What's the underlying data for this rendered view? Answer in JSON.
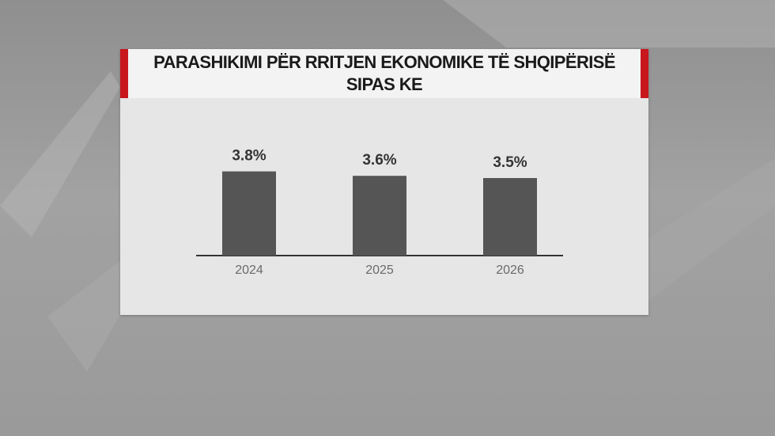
{
  "chart_data": {
    "type": "bar",
    "title": "PARASHIKIMI PËR RRITJEN EKONOMIKE TË SHQIPËRISË SIPAS KE",
    "categories": [
      "2024",
      "2025",
      "2026"
    ],
    "values": [
      3.8,
      3.6,
      3.5
    ],
    "value_labels": [
      "3.8%",
      "3.6%",
      "3.5%"
    ],
    "color": "#555555"
  }
}
